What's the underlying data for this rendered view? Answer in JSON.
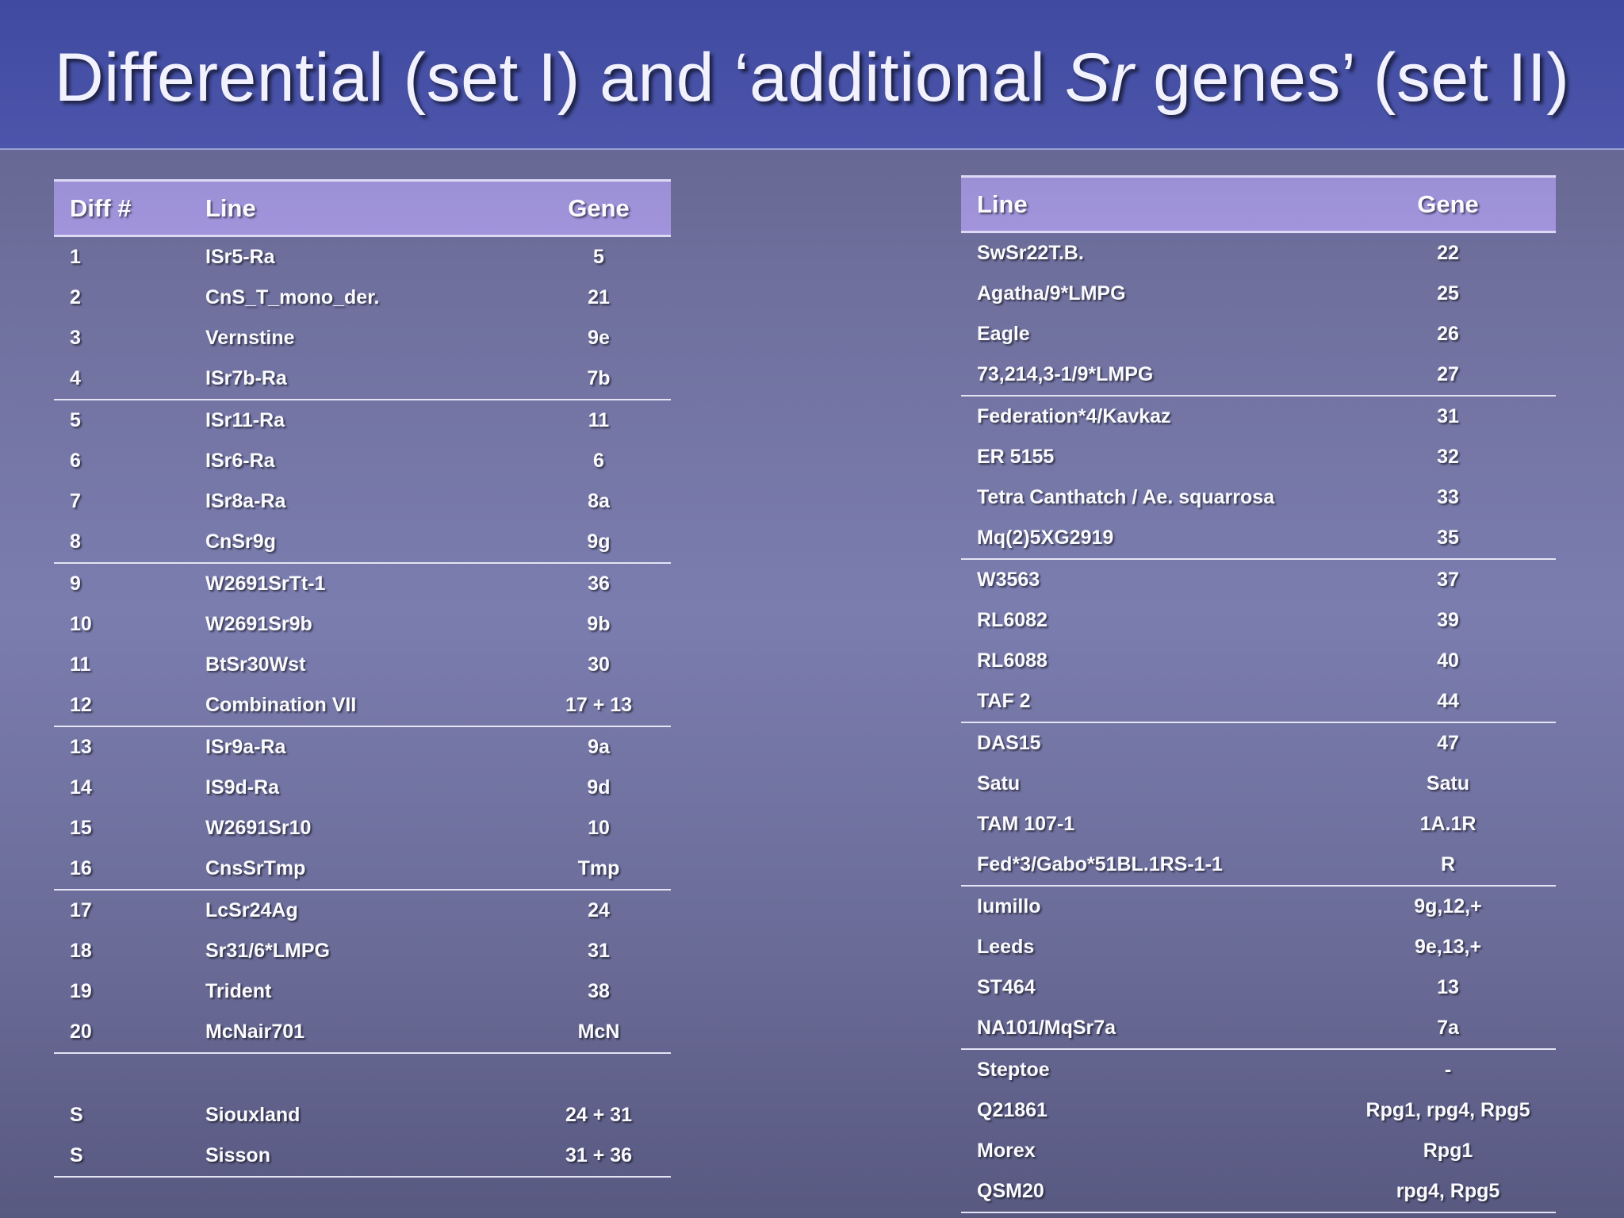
{
  "title": {
    "before": "Differential (set I) and ‘additional ",
    "italic": "Sr",
    "after": " genes’ (set II)"
  },
  "set1": {
    "headers": [
      "Diff #",
      "Line",
      "Gene"
    ],
    "groups": [
      [
        [
          "1",
          "ISr5-Ra",
          "5"
        ],
        [
          "2",
          "CnS_T_mono_der.",
          "21"
        ],
        [
          "3",
          "Vernstine",
          "9e"
        ],
        [
          "4",
          "ISr7b-Ra",
          "7b"
        ]
      ],
      [
        [
          "5",
          "ISr11-Ra",
          "11"
        ],
        [
          "6",
          "ISr6-Ra",
          "6"
        ],
        [
          "7",
          "ISr8a-Ra",
          "8a"
        ],
        [
          "8",
          "CnSr9g",
          "9g"
        ]
      ],
      [
        [
          "9",
          "W2691SrTt-1",
          "36"
        ],
        [
          "10",
          "W2691Sr9b",
          "9b"
        ],
        [
          "11",
          "BtSr30Wst",
          "30"
        ],
        [
          "12",
          "Combination VII",
          "17 + 13"
        ]
      ],
      [
        [
          "13",
          "ISr9a-Ra",
          "9a"
        ],
        [
          "14",
          "IS9d-Ra",
          "9d"
        ],
        [
          "15",
          "W2691Sr10",
          "10"
        ],
        [
          "16",
          "CnsSrTmp",
          "Tmp"
        ]
      ],
      [
        [
          "17",
          "LcSr24Ag",
          "24"
        ],
        [
          "18",
          "Sr31/6*LMPG",
          "31"
        ],
        [
          "19",
          "Trident",
          "38"
        ],
        [
          "20",
          "McNair701",
          "McN"
        ]
      ]
    ],
    "extra": [
      [
        "S",
        "Siouxland",
        "24 + 31"
      ],
      [
        "S",
        "Sisson",
        "31 + 36"
      ]
    ]
  },
  "set2": {
    "headers": [
      "Line",
      "Gene"
    ],
    "groups": [
      [
        [
          "SwSr22T.B.",
          "22"
        ],
        [
          "Agatha/9*LMPG",
          "25"
        ],
        [
          "Eagle",
          "26"
        ],
        [
          "73,214,3-1/9*LMPG",
          "27"
        ]
      ],
      [
        [
          "Federation*4/Kavkaz",
          "31"
        ],
        [
          "ER 5155",
          "32"
        ],
        [
          "Tetra Canthatch / Ae. squarrosa",
          "33"
        ],
        [
          "Mq(2)5XG2919",
          "35"
        ]
      ],
      [
        [
          "W3563",
          "37"
        ],
        [
          "RL6082",
          "39"
        ],
        [
          "RL6088",
          "40"
        ],
        [
          "TAF 2",
          "44"
        ]
      ],
      [
        [
          "DAS15",
          "47"
        ],
        [
          "Satu",
          "Satu"
        ],
        [
          "TAM 107-1",
          "1A.1R"
        ],
        [
          "Fed*3/Gabo*51BL.1RS-1-1",
          "R"
        ]
      ],
      [
        [
          "Iumillo",
          "9g,12,+"
        ],
        [
          "Leeds",
          "9e,13,+"
        ],
        [
          "ST464",
          "13"
        ],
        [
          "NA101/MqSr7a",
          "7a"
        ]
      ],
      [
        [
          "Steptoe",
          "-"
        ],
        [
          "Q21861",
          "Rpg1, rpg4, Rpg5"
        ],
        [
          "Morex",
          "Rpg1"
        ],
        [
          "QSM20",
          "rpg4, Rpg5"
        ]
      ]
    ]
  }
}
